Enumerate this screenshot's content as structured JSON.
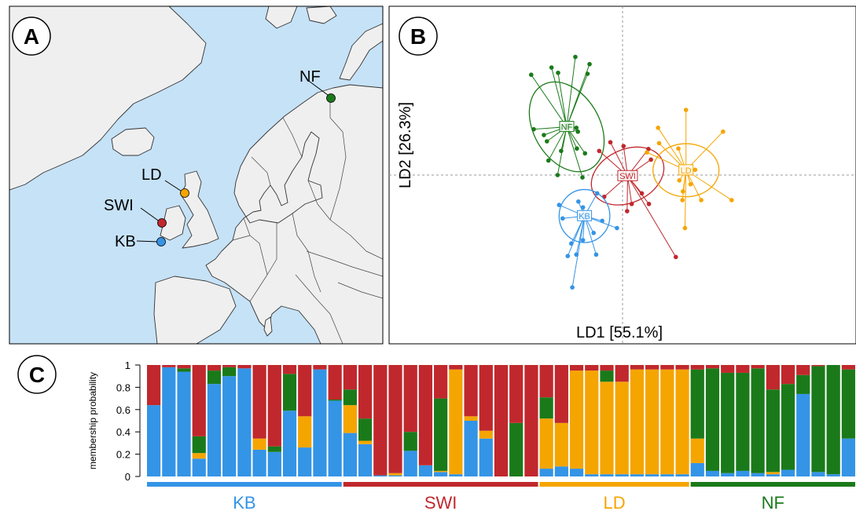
{
  "panels": {
    "a": {
      "label": "A"
    },
    "b": {
      "label": "B"
    },
    "c": {
      "label": "C"
    }
  },
  "map": {
    "sites": [
      {
        "name": "NF",
        "color": "#1a7a1a"
      },
      {
        "name": "LD",
        "color": "#f5a500"
      },
      {
        "name": "SWI",
        "color": "#c0282d"
      },
      {
        "name": "KB",
        "color": "#3494e6"
      }
    ],
    "colors": {
      "sea": "#c6e2f7",
      "land": "#efefef",
      "border": "#333333"
    }
  },
  "chart_data": [
    {
      "type": "scatter",
      "title": "",
      "xlabel": "LD1 [55.1%]",
      "ylabel": "LD2 [26.3%]",
      "xlim": [
        -4.6,
        4.6
      ],
      "ylim": [
        -3.5,
        3.5
      ],
      "grid": false,
      "reference_lines": {
        "x": 0,
        "y": 0
      },
      "series": [
        {
          "name": "NF",
          "color": "#1a7a1a",
          "centroid": [
            -1.1,
            1.0
          ],
          "ellipse": {
            "rx": 0.65,
            "ry": 1.0,
            "angle": -30
          },
          "points": [
            [
              -1.8,
              2.08
            ],
            [
              -1.4,
              2.23
            ],
            [
              -1.27,
              2.12
            ],
            [
              -0.93,
              2.45
            ],
            [
              -0.69,
              2.1
            ],
            [
              -0.65,
              2.3
            ],
            [
              -1.75,
              0.95
            ],
            [
              -1.55,
              0.83
            ],
            [
              -1.49,
              0.7
            ],
            [
              -1.21,
              0.5
            ],
            [
              -1.05,
              1.05
            ],
            [
              -0.88,
              0.9
            ],
            [
              -0.91,
              0.98
            ],
            [
              -0.9,
              0.55
            ],
            [
              -1.46,
              0.3
            ],
            [
              -1.28,
              0.0
            ],
            [
              -0.79,
              -0.05
            ],
            [
              -0.74,
              0.45
            ]
          ]
        },
        {
          "name": "SWI",
          "color": "#c0282d",
          "centroid": [
            0.1,
            -0.02
          ],
          "ellipse": {
            "rx": 0.75,
            "ry": 0.55,
            "angle": -25
          },
          "points": [
            [
              -0.46,
              0.5
            ],
            [
              -0.24,
              0.68
            ],
            [
              0.02,
              0.6
            ],
            [
              0.2,
              0.05
            ],
            [
              0.05,
              -0.05
            ],
            [
              0.51,
              0.54
            ],
            [
              0.56,
              0.32
            ],
            [
              0.38,
              -0.38
            ],
            [
              0.18,
              -0.6
            ],
            [
              0.09,
              -0.75
            ],
            [
              -0.36,
              -0.45
            ],
            [
              1.05,
              -1.7
            ],
            [
              0.52,
              -0.6
            ]
          ]
        },
        {
          "name": "LD",
          "color": "#f5a500",
          "centroid": [
            1.25,
            0.1
          ],
          "ellipse": {
            "rx": 0.65,
            "ry": 0.55,
            "angle": 0
          },
          "points": [
            [
              1.25,
              1.35
            ],
            [
              0.7,
              0.98
            ],
            [
              0.72,
              0.66
            ],
            [
              0.48,
              0.47
            ],
            [
              1.1,
              0.55
            ],
            [
              1.98,
              0.9
            ],
            [
              1.32,
              0.11
            ],
            [
              1.43,
              0.11
            ],
            [
              1.12,
              -0.11
            ],
            [
              1.34,
              -0.19
            ],
            [
              1.19,
              -0.34
            ],
            [
              2.15,
              -0.52
            ],
            [
              1.18,
              -0.52
            ],
            [
              1.55,
              -0.52
            ],
            [
              1.23,
              -1.1
            ]
          ]
        },
        {
          "name": "KB",
          "color": "#3494e6",
          "centroid": [
            -0.75,
            -0.85
          ],
          "ellipse": {
            "rx": 0.5,
            "ry": 0.55,
            "angle": 0
          },
          "points": [
            [
              -1.25,
              -0.62
            ],
            [
              -1.18,
              -0.9
            ],
            [
              -0.87,
              -0.55
            ],
            [
              -0.78,
              -0.67
            ],
            [
              -0.5,
              -0.38
            ],
            [
              -0.4,
              -0.95
            ],
            [
              -0.11,
              -1.1
            ],
            [
              -0.57,
              -1.2
            ],
            [
              -0.78,
              -1.35
            ],
            [
              -1.01,
              -1.42
            ],
            [
              -1.08,
              -1.68
            ],
            [
              -0.91,
              -1.65
            ],
            [
              -0.52,
              -1.65
            ],
            [
              -0.99,
              -2.33
            ]
          ]
        }
      ]
    },
    {
      "type": "bar",
      "stacked": true,
      "title": "",
      "xlabel": "",
      "ylabel": "membership probability",
      "ylim": [
        0,
        1
      ],
      "yticks": [
        "0",
        "0.2",
        "0.4",
        "0.6",
        "0.8",
        "1"
      ],
      "component_colors": [
        "#3494e6",
        "#f5a500",
        "#1a7a1a",
        "#c0282d"
      ],
      "groups": [
        {
          "name": "KB",
          "color": "#3494e6",
          "count": 13
        },
        {
          "name": "SWI",
          "color": "#c0282d",
          "count": 13
        },
        {
          "name": "LD",
          "color": "#f5a500",
          "count": 10
        },
        {
          "name": "NF",
          "color": "#1a7a1a",
          "count": 11
        }
      ],
      "series": [
        {
          "name": "KB",
          "values": [
            0.64,
            0.98,
            0.94,
            0.16,
            0.83,
            0.9,
            0.97,
            0.24,
            0.22,
            0.59,
            0.26,
            0.96,
            0.68,
            0.39,
            0.29,
            0.01,
            0.01,
            0.23,
            0.1,
            0.04,
            0.02,
            0.5,
            0.34,
            0.0,
            0.0,
            0.0,
            0.07,
            0.09,
            0.07,
            0.02,
            0.02,
            0.02,
            0.02,
            0.02,
            0.02,
            0.02,
            0.12,
            0.05,
            0.03,
            0.05,
            0.03,
            0.02,
            0.06,
            0.74,
            0.04,
            0.02,
            0.34
          ]
        },
        {
          "name": "LD",
          "values": [
            0.0,
            0.0,
            0.0,
            0.05,
            0.0,
            0.0,
            0.0,
            0.1,
            0.0,
            0.0,
            0.28,
            0.0,
            0.0,
            0.25,
            0.03,
            0.0,
            0.02,
            0.0,
            0.0,
            0.01,
            0.94,
            0.04,
            0.07,
            0.0,
            0.0,
            0.0,
            0.45,
            0.39,
            0.88,
            0.93,
            0.83,
            0.83,
            0.94,
            0.94,
            0.94,
            0.94,
            0.22,
            0.0,
            0.0,
            0.0,
            0.0,
            0.02,
            0.0,
            0.0,
            0.0,
            0.0,
            0.0
          ]
        },
        {
          "name": "NF",
          "values": [
            0.0,
            0.0,
            0.03,
            0.15,
            0.12,
            0.08,
            0.0,
            0.0,
            0.05,
            0.33,
            0.0,
            0.0,
            0.01,
            0.14,
            0.2,
            0.0,
            0.0,
            0.17,
            0.0,
            0.65,
            0.0,
            0.0,
            0.0,
            0.0,
            0.48,
            0.0,
            0.19,
            0.0,
            0.0,
            0.0,
            0.1,
            0.0,
            0.0,
            0.0,
            0.0,
            0.0,
            0.62,
            0.92,
            0.9,
            0.88,
            0.94,
            0.74,
            0.77,
            0.17,
            0.95,
            0.98,
            0.62
          ]
        },
        {
          "name": "SWI",
          "values": [
            0.36,
            0.02,
            0.03,
            0.64,
            0.05,
            0.02,
            0.03,
            0.66,
            0.73,
            0.08,
            0.46,
            0.04,
            0.31,
            0.22,
            0.48,
            0.99,
            0.97,
            0.6,
            0.9,
            0.3,
            0.04,
            0.46,
            0.59,
            1.0,
            0.52,
            1.0,
            0.29,
            0.52,
            0.05,
            0.05,
            0.05,
            0.15,
            0.04,
            0.04,
            0.04,
            0.04,
            0.04,
            0.03,
            0.07,
            0.07,
            0.03,
            0.22,
            0.17,
            0.09,
            0.01,
            0.0,
            0.04
          ]
        }
      ]
    }
  ]
}
